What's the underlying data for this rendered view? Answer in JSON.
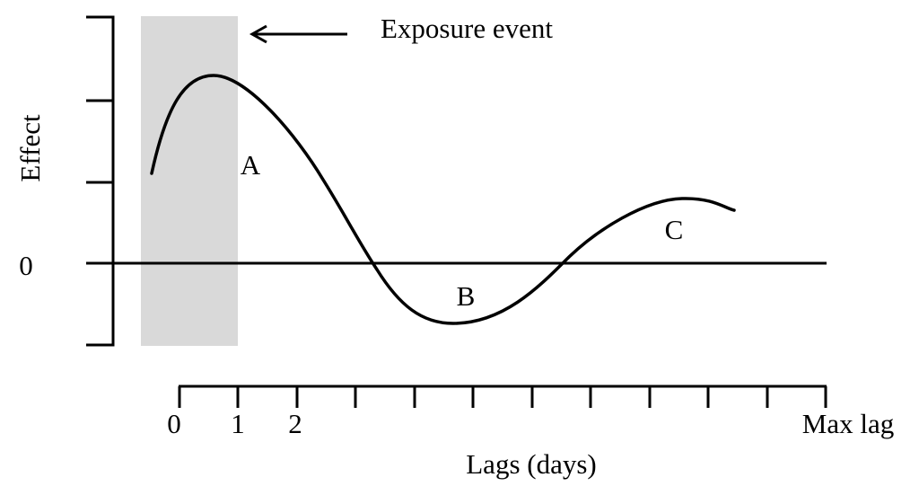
{
  "annotation": "Exposure event",
  "y_axis": {
    "label": "Effect",
    "zero_label": "0"
  },
  "x_axis": {
    "label": "Lags (days)",
    "tick_labels": [
      "0",
      "1",
      "2",
      "Max lag"
    ]
  },
  "curve_labels": [
    "A",
    "B",
    "C"
  ],
  "colors": {
    "exposure_shade": "#d9d9d9",
    "ink": "#000000"
  }
}
